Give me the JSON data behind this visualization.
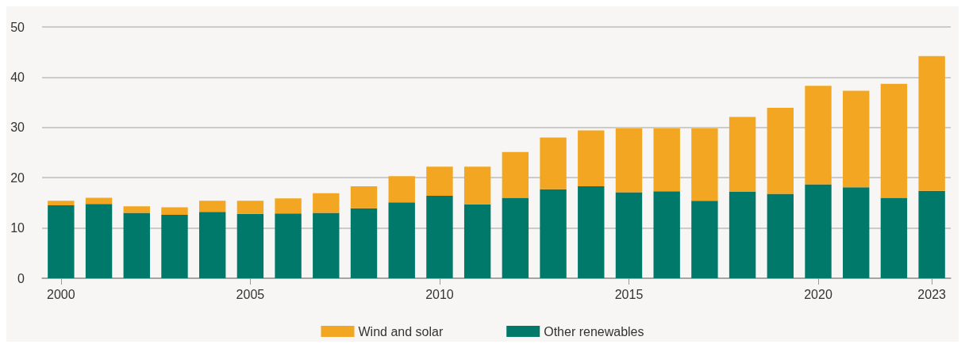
{
  "chart_data": {
    "type": "bar",
    "stacked": true,
    "categories": [
      "2000",
      null,
      null,
      null,
      null,
      "2005",
      null,
      null,
      null,
      null,
      "2010",
      null,
      null,
      null,
      null,
      "2015",
      null,
      null,
      null,
      null,
      "2020",
      null,
      null,
      "2023"
    ],
    "series": [
      {
        "name": "Other renewables",
        "color": "#00786a",
        "values": [
          14.5,
          14.8,
          13.0,
          12.6,
          13.2,
          12.8,
          12.9,
          13.0,
          13.9,
          15.1,
          16.4,
          14.7,
          16.0,
          17.7,
          18.3,
          17.1,
          17.3,
          15.4,
          17.2,
          16.8,
          18.7,
          18.1,
          16.0,
          17.4
        ]
      },
      {
        "name": "Wind and solar",
        "color": "#f2a622",
        "values": [
          0.9,
          1.2,
          1.3,
          1.5,
          2.2,
          2.6,
          3.0,
          3.9,
          4.4,
          5.2,
          5.8,
          7.5,
          9.1,
          10.3,
          11.1,
          12.7,
          12.5,
          14.4,
          14.9,
          17.1,
          19.6,
          19.2,
          22.7,
          26.8
        ]
      }
    ],
    "ylim": [
      0,
      50
    ],
    "yticks": [
      0,
      10,
      20,
      30,
      40,
      50
    ],
    "grid": "y",
    "legend": "bottom"
  }
}
